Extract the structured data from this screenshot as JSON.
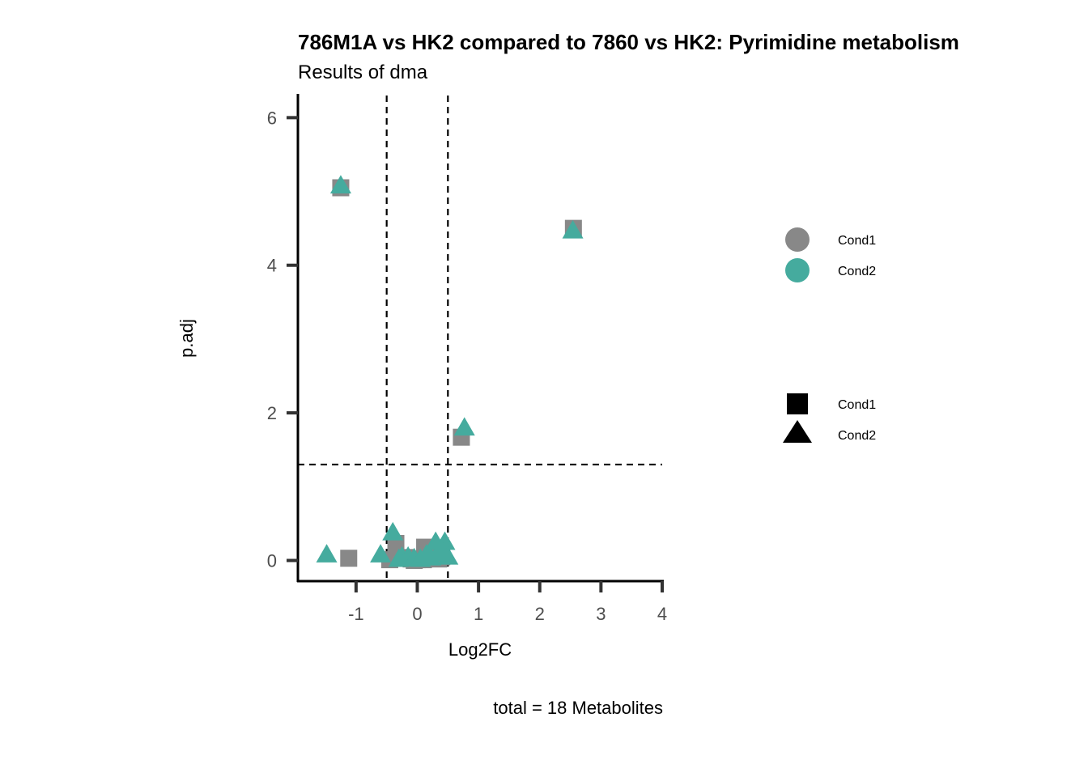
{
  "chart_data": {
    "type": "scatter",
    "title": "786M1A vs HK2 compared to 7860 vs HK2: Pyrimidine metabolism",
    "subtitle": "Results of dma",
    "xlabel": "Log2FC",
    "ylabel": "p.adj",
    "caption": "total = 18 Metabolites",
    "xlim": [
      -1.95,
      4.0
    ],
    "ylim": [
      -0.28,
      6.3
    ],
    "x_ticks": [
      -1,
      0,
      1,
      2,
      3,
      4
    ],
    "x_tick_labels": [
      "-1",
      "0",
      "1",
      "2",
      "3",
      "4"
    ],
    "y_ticks": [
      0,
      2,
      4,
      6
    ],
    "y_tick_labels": [
      "0",
      "2",
      "4",
      "6"
    ],
    "thresholds": {
      "x": [
        -0.5,
        0.5
      ],
      "y": 1.3
    },
    "legend": {
      "position": "right",
      "color_entries": [
        {
          "label": "Cond1",
          "color": "#888888"
        },
        {
          "label": "Cond2",
          "color": "#45AB9E"
        }
      ],
      "shape_entries": [
        {
          "label": "Cond1",
          "shape": "square"
        },
        {
          "label": "Cond2",
          "shape": "triangle"
        }
      ]
    },
    "series": [
      {
        "name": "Cond1",
        "color": "#888888",
        "shape": "square",
        "points": [
          {
            "x": -1.25,
            "y": 5.05
          },
          {
            "x": 2.55,
            "y": 4.5
          },
          {
            "x": 0.72,
            "y": 1.67
          },
          {
            "x": -1.12,
            "y": 0.03
          },
          {
            "x": -0.35,
            "y": 0.23
          },
          {
            "x": 0.12,
            "y": 0.18
          },
          {
            "x": -0.45,
            "y": 0.01
          },
          {
            "x": -0.2,
            "y": 0.04
          },
          {
            "x": -0.1,
            "y": 0.02
          },
          {
            "x": 0.0,
            "y": 0.01
          },
          {
            "x": 0.05,
            "y": 0.02
          },
          {
            "x": 0.2,
            "y": 0.05
          },
          {
            "x": 0.3,
            "y": 0.08
          },
          {
            "x": 0.4,
            "y": 0.05
          },
          {
            "x": -0.3,
            "y": 0.03
          },
          {
            "x": -0.05,
            "y": 0.0
          },
          {
            "x": 0.1,
            "y": 0.01
          },
          {
            "x": 0.35,
            "y": 0.02
          }
        ]
      },
      {
        "name": "Cond2",
        "color": "#45AB9E",
        "shape": "triangle",
        "points": [
          {
            "x": -1.25,
            "y": 5.08
          },
          {
            "x": 2.54,
            "y": 4.47
          },
          {
            "x": 0.77,
            "y": 1.8
          },
          {
            "x": -1.48,
            "y": 0.08
          },
          {
            "x": -0.6,
            "y": 0.08
          },
          {
            "x": -0.4,
            "y": 0.38
          },
          {
            "x": -0.25,
            "y": 0.05
          },
          {
            "x": -0.15,
            "y": 0.05
          },
          {
            "x": -0.05,
            "y": 0.03
          },
          {
            "x": 0.05,
            "y": 0.02
          },
          {
            "x": 0.15,
            "y": 0.08
          },
          {
            "x": 0.3,
            "y": 0.25
          },
          {
            "x": 0.45,
            "y": 0.25
          },
          {
            "x": 0.35,
            "y": 0.12
          },
          {
            "x": 0.5,
            "y": 0.05
          },
          {
            "x": -0.3,
            "y": 0.02
          },
          {
            "x": 0.22,
            "y": 0.04
          },
          {
            "x": 0.42,
            "y": 0.1
          }
        ]
      }
    ]
  }
}
